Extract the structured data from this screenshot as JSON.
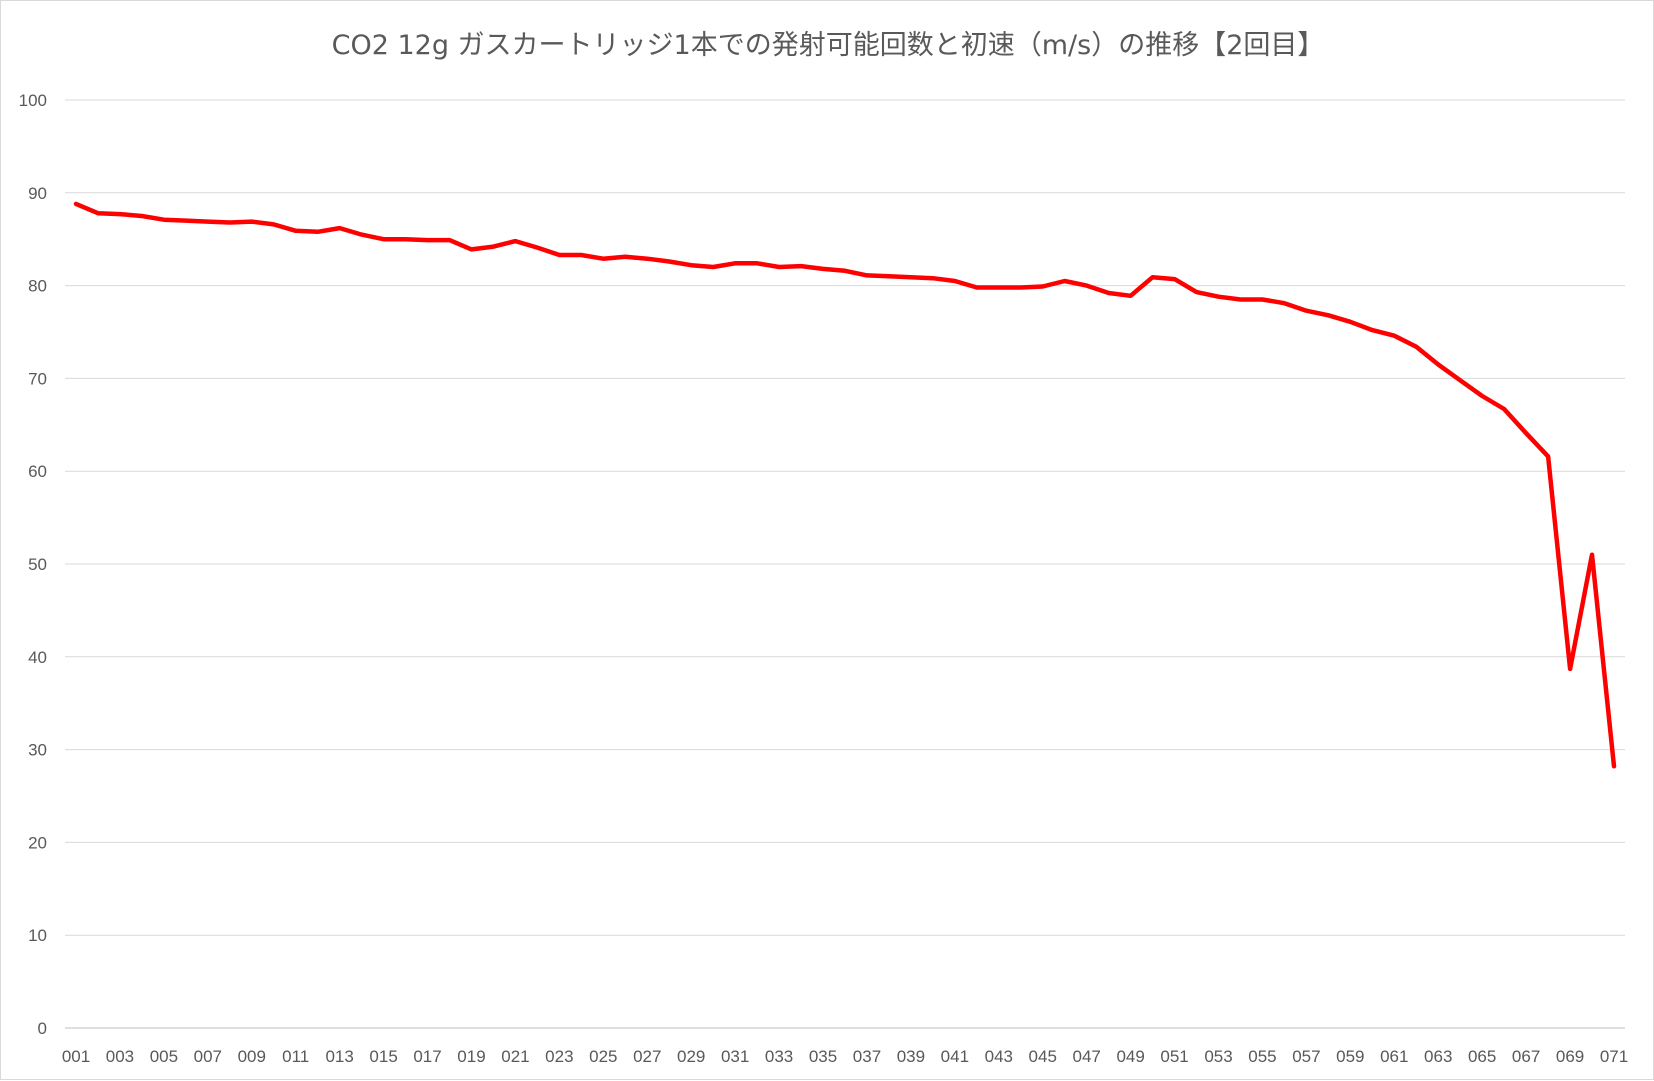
{
  "chart_data": {
    "type": "line",
    "title": "CO2 12g ガスカートリッジ1本での発射可能回数と初速（m/s）の推移【2回目】",
    "xlabel": "",
    "ylabel": "",
    "ylim": [
      0,
      100
    ],
    "y_ticks": [
      0,
      10,
      20,
      30,
      40,
      50,
      60,
      70,
      80,
      90,
      100
    ],
    "grid": true,
    "legend": "none",
    "series_color": "#ff0000",
    "categories": [
      "001",
      "002",
      "003",
      "004",
      "005",
      "006",
      "007",
      "008",
      "009",
      "010",
      "011",
      "012",
      "013",
      "014",
      "015",
      "016",
      "017",
      "018",
      "019",
      "020",
      "021",
      "022",
      "023",
      "024",
      "025",
      "026",
      "027",
      "028",
      "029",
      "030",
      "031",
      "032",
      "033",
      "034",
      "035",
      "036",
      "037",
      "038",
      "039",
      "040",
      "041",
      "042",
      "043",
      "044",
      "045",
      "046",
      "047",
      "048",
      "049",
      "050",
      "051",
      "052",
      "053",
      "054",
      "055",
      "056",
      "057",
      "058",
      "059",
      "060",
      "061",
      "062",
      "063",
      "064",
      "065",
      "066",
      "067",
      "068",
      "069",
      "070",
      "071"
    ],
    "x_tick_labels": [
      "001",
      "003",
      "005",
      "007",
      "009",
      "011",
      "013",
      "015",
      "017",
      "019",
      "021",
      "023",
      "025",
      "027",
      "029",
      "031",
      "033",
      "035",
      "037",
      "039",
      "041",
      "043",
      "045",
      "047",
      "049",
      "051",
      "053",
      "055",
      "057",
      "059",
      "061",
      "063",
      "065",
      "067",
      "069",
      "071"
    ],
    "series": [
      {
        "values": [
          88.8,
          87.8,
          87.7,
          87.5,
          87.1,
          87.0,
          86.9,
          86.8,
          86.9,
          86.6,
          85.9,
          85.8,
          86.2,
          85.5,
          85.0,
          85.0,
          84.9,
          84.9,
          83.9,
          84.2,
          84.8,
          84.1,
          83.3,
          83.3,
          82.9,
          83.1,
          82.9,
          82.6,
          82.2,
          82.0,
          82.4,
          82.4,
          82.0,
          82.1,
          81.8,
          81.6,
          81.1,
          81.0,
          80.9,
          80.8,
          80.5,
          79.8,
          79.8,
          79.8,
          79.9,
          80.5,
          80.0,
          79.2,
          78.9,
          80.9,
          80.7,
          79.3,
          78.8,
          78.5,
          78.5,
          78.1,
          77.3,
          76.8,
          76.1,
          75.2,
          74.6,
          73.4,
          71.5,
          69.8,
          68.1,
          66.7,
          64.1,
          61.6,
          38.7,
          51.0,
          28.2
        ]
      }
    ]
  }
}
